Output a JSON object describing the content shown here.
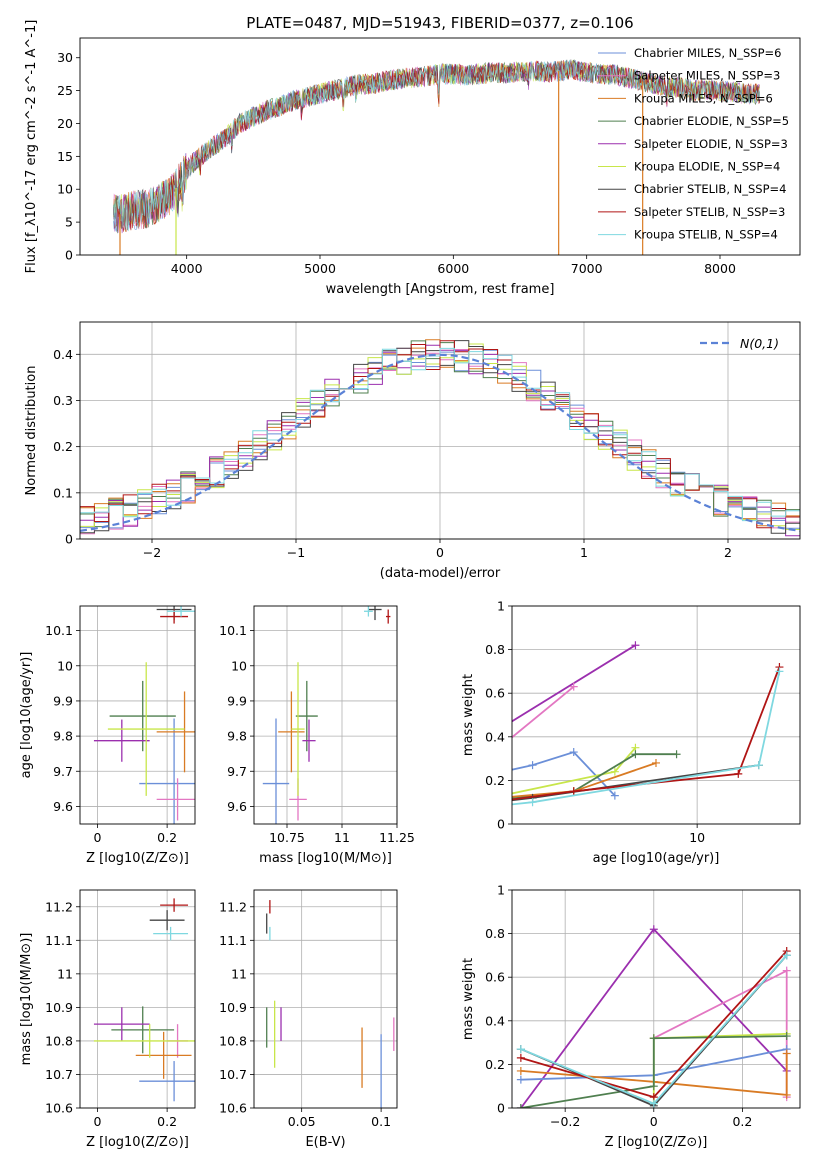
{
  "figure": {
    "title": "PLATE=0487, MJD=51943, FIBERID=0377, z=0.106"
  },
  "colors": {
    "Chabrier MILES": "#6b8fd8",
    "Salpeter MILES": "#e377c2",
    "Kroupa MILES": "#d97b24",
    "Chabrier ELODIE": "#4f7f4f",
    "Salpeter ELODIE": "#9b2fae",
    "Kroupa ELODIE": "#c8e64a",
    "Chabrier STELIB": "#454545",
    "Salpeter STELIB": "#b01515",
    "Kroupa STELIB": "#7fd8e0"
  },
  "chart_data": [
    {
      "id": "spectrum",
      "type": "line",
      "title": "PLATE=0487, MJD=51943, FIBERID=0377, z=0.106",
      "xlabel": "wavelength [Angstrom, rest frame]",
      "ylabel": "Flux [f_λ10^-17 erg cm^-2 s^-1 A^-1]",
      "xlim": [
        3200,
        8600
      ],
      "ylim": [
        0,
        33
      ],
      "xticks": [
        4000,
        5000,
        6000,
        7000,
        8000
      ],
      "yticks": [
        0,
        5,
        10,
        15,
        20,
        25,
        30
      ],
      "grid": false,
      "legend_position": "right",
      "legend": [
        "Chabrier MILES, N_SSP=6",
        "Salpeter MILES, N_SSP=3",
        "Kroupa MILES, N_SSP=6",
        "Chabrier ELODIE, N_SSP=5",
        "Salpeter ELODIE, N_SSP=3",
        "Kroupa ELODIE, N_SSP=4",
        "Chabrier STELIB, N_SSP=4",
        "Salpeter STELIB, N_SSP=3",
        "Kroupa STELIB, N_SSP=4"
      ],
      "continuum": {
        "x": [
          3450,
          3500,
          3600,
          3700,
          3800,
          3900,
          4000,
          4100,
          4200,
          4300,
          4400,
          4500,
          4600,
          4700,
          4800,
          4900,
          5000,
          5100,
          5200,
          5300,
          5400,
          5500,
          5600,
          5700,
          5800,
          5900,
          6000,
          6100,
          6200,
          6300,
          6400,
          6500,
          6600,
          6700,
          6800,
          6900,
          7000,
          7100,
          7200,
          7300,
          7400,
          7500,
          7600,
          7700,
          7800,
          7900,
          8000,
          8100,
          8200,
          8300
        ],
        "y": [
          6.5,
          6.2,
          6.8,
          7.0,
          8.0,
          9.5,
          13.0,
          15.0,
          16.5,
          18.0,
          20.0,
          21.0,
          22.0,
          22.5,
          23.5,
          24.0,
          24.5,
          25.0,
          25.5,
          26.0,
          26.0,
          26.5,
          26.8,
          27.0,
          27.2,
          27.5,
          27.5,
          27.3,
          27.5,
          27.8,
          27.6,
          27.9,
          28.0,
          27.8,
          28.0,
          28.2,
          27.8,
          27.5,
          27.5,
          27.0,
          26.5,
          26.0,
          25.5,
          25.5,
          25.0,
          25.2,
          25.0,
          24.8,
          24.5,
          24.5
        ]
      },
      "drop_lines": [
        {
          "x": 3500,
          "color": "Kroupa MILES"
        },
        {
          "x": 3920,
          "color": "Kroupa ELODIE"
        },
        {
          "x": 6790,
          "color": "Kroupa MILES"
        },
        {
          "x": 7420,
          "color": "Kroupa MILES"
        }
      ]
    },
    {
      "id": "residuals",
      "type": "step",
      "xlabel": "(data-model)/error",
      "ylabel": "Normed distribution",
      "xlim": [
        -2.5,
        2.5
      ],
      "ylim": [
        0,
        0.47
      ],
      "xticks": [
        -2,
        -1,
        0,
        1,
        2
      ],
      "yticks": [
        0.0,
        0.1,
        0.2,
        0.3,
        0.4
      ],
      "grid": true,
      "legend": [
        "N(0,1)"
      ],
      "legend_position": "top-right",
      "reference": "normal pdf, mean 0, sigma 1"
    },
    {
      "id": "age-vs-Z",
      "type": "errorbar",
      "xlabel": "Z [log10(Z/Z⊙)]",
      "ylabel": "age  [log10(age/yr)]",
      "xlim": [
        -0.05,
        0.28
      ],
      "ylim": [
        9.55,
        10.17
      ],
      "xticks": [
        0.0,
        0.2
      ],
      "yticks": [
        9.6,
        9.7,
        9.8,
        9.9,
        10.0,
        10.1
      ],
      "grid": true,
      "points": [
        {
          "model": "Chabrier MILES",
          "x": 0.22,
          "y": 9.665,
          "xerr": 0.1,
          "yerr": 0.185
        },
        {
          "model": "Salpeter MILES",
          "x": 0.23,
          "y": 9.62,
          "xerr": 0.06,
          "yerr": 0.06
        },
        {
          "model": "Kroupa MILES",
          "x": 0.25,
          "y": 9.812,
          "xerr": 0.08,
          "yerr": 0.115
        },
        {
          "model": "Chabrier ELODIE",
          "x": 0.13,
          "y": 9.857,
          "xerr": 0.095,
          "yerr": 0.1
        },
        {
          "model": "Salpeter ELODIE",
          "x": 0.07,
          "y": 9.787,
          "xerr": 0.08,
          "yerr": 0.06
        },
        {
          "model": "Kroupa ELODIE",
          "x": 0.14,
          "y": 9.82,
          "xerr": 0.11,
          "yerr": 0.19
        },
        {
          "model": "Chabrier STELIB",
          "x": 0.22,
          "y": 10.16,
          "xerr": 0.05,
          "yerr": 0.03
        },
        {
          "model": "Salpeter STELIB",
          "x": 0.22,
          "y": 10.14,
          "xerr": 0.04,
          "yerr": 0.02
        },
        {
          "model": "Kroupa STELIB",
          "x": 0.24,
          "y": 10.155,
          "xerr": 0.04,
          "yerr": 0.015
        }
      ]
    },
    {
      "id": "age-vs-mass",
      "type": "errorbar",
      "xlabel": "mass [log10(M/M⊙)]",
      "ylabel": "",
      "xlim": [
        10.6,
        11.25
      ],
      "ylim": [
        9.55,
        10.17
      ],
      "xticks": [
        10.75,
        11.0,
        11.25
      ],
      "yticks": [
        9.6,
        9.7,
        9.8,
        9.9,
        10.0,
        10.1
      ],
      "grid": true,
      "points": [
        {
          "model": "Chabrier MILES",
          "x": 10.7,
          "y": 9.665,
          "xerr": 0.06,
          "yerr": 0.185
        },
        {
          "model": "Salpeter MILES",
          "x": 10.8,
          "y": 9.62,
          "xerr": 0.04,
          "yerr": 0.06
        },
        {
          "model": "Kroupa MILES",
          "x": 10.77,
          "y": 9.812,
          "xerr": 0.06,
          "yerr": 0.115
        },
        {
          "model": "Chabrier ELODIE",
          "x": 10.84,
          "y": 9.857,
          "xerr": 0.05,
          "yerr": 0.1
        },
        {
          "model": "Salpeter ELODIE",
          "x": 10.85,
          "y": 9.787,
          "xerr": 0.03,
          "yerr": 0.06
        },
        {
          "model": "Kroupa ELODIE",
          "x": 10.8,
          "y": 9.82,
          "xerr": 0.03,
          "yerr": 0.19
        },
        {
          "model": "Chabrier STELIB",
          "x": 11.15,
          "y": 10.16,
          "xerr": 0.03,
          "yerr": 0.03
        },
        {
          "model": "Salpeter STELIB",
          "x": 11.21,
          "y": 10.14,
          "xerr": 0.01,
          "yerr": 0.02
        },
        {
          "model": "Kroupa STELIB",
          "x": 11.12,
          "y": 10.155,
          "xerr": 0.02,
          "yerr": 0.015
        }
      ]
    },
    {
      "id": "massweight-vs-age",
      "type": "line",
      "xlabel": "age  [log10(age/yr)]",
      "ylabel": "mass weight",
      "xlim": [
        9.55,
        10.25
      ],
      "ylim": [
        0.0,
        1.0
      ],
      "xticks": [
        9.0,
        9.5,
        10.0
      ],
      "yticks": [
        0.0,
        0.2,
        0.4,
        0.6,
        0.8,
        1.0
      ],
      "grid": true,
      "series": [
        {
          "model": "Salpeter ELODIE",
          "x": [
            9.0,
            9.3,
            9.85
          ],
          "y": [
            0.01,
            0.18,
            0.82
          ]
        },
        {
          "model": "Salpeter MILES",
          "x": [
            9.2,
            9.5,
            9.7
          ],
          "y": [
            0.05,
            0.32,
            0.63
          ]
        },
        {
          "model": "Chabrier MILES",
          "x": [
            9.0,
            9.6,
            9.7,
            9.8
          ],
          "y": [
            0.02,
            0.27,
            0.33,
            0.13
          ]
        },
        {
          "model": "Kroupa ELODIE",
          "x": [
            9.2,
            9.5,
            9.8,
            9.85
          ],
          "y": [
            0.05,
            0.12,
            0.24,
            0.35
          ]
        },
        {
          "model": "Chabrier ELODIE",
          "x": [
            9.2,
            9.7,
            9.85,
            9.95
          ],
          "y": [
            0.04,
            0.15,
            0.32,
            0.32
          ]
        },
        {
          "model": "Kroupa MILES",
          "x": [
            9.2,
            9.4,
            9.7,
            9.9
          ],
          "y": [
            0.06,
            0.1,
            0.15,
            0.28
          ]
        },
        {
          "model": "Chabrier STELIB",
          "x": [
            9.2,
            9.6,
            10.15
          ],
          "y": [
            0.03,
            0.12,
            0.27
          ]
        },
        {
          "model": "Salpeter STELIB",
          "x": [
            9.3,
            9.7,
            10.1,
            10.2
          ],
          "y": [
            0.05,
            0.15,
            0.23,
            0.72
          ]
        },
        {
          "model": "Kroupa STELIB",
          "x": [
            9.2,
            9.6,
            10.15,
            10.2
          ],
          "y": [
            0.02,
            0.1,
            0.27,
            0.7
          ]
        }
      ]
    },
    {
      "id": "mass-vs-Z",
      "type": "errorbar",
      "xlabel": "Z [log10(Z/Z⊙)]",
      "ylabel": "mass [log10(M/M⊙)]",
      "xlim": [
        -0.05,
        0.28
      ],
      "ylim": [
        10.6,
        11.25
      ],
      "xticks": [
        0.0,
        0.2
      ],
      "yticks": [
        10.6,
        10.7,
        10.8,
        10.9,
        11.0,
        11.1,
        11.2
      ],
      "grid": true,
      "points": [
        {
          "model": "Chabrier MILES",
          "x": 0.22,
          "y": 10.68,
          "xerr": 0.1,
          "yerr": 0.06
        },
        {
          "model": "Salpeter MILES",
          "x": 0.23,
          "y": 10.8,
          "xerr": 0.03,
          "yerr": 0.05
        },
        {
          "model": "Kroupa MILES",
          "x": 0.19,
          "y": 10.757,
          "xerr": 0.08,
          "yerr": 0.07
        },
        {
          "model": "Chabrier ELODIE",
          "x": 0.13,
          "y": 10.833,
          "xerr": 0.09,
          "yerr": 0.07
        },
        {
          "model": "Salpeter ELODIE",
          "x": 0.07,
          "y": 10.85,
          "xerr": 0.08,
          "yerr": 0.05
        },
        {
          "model": "Kroupa ELODIE",
          "x": 0.15,
          "y": 10.8,
          "xerr": 0.16,
          "yerr": 0.05
        },
        {
          "model": "Chabrier STELIB",
          "x": 0.2,
          "y": 11.16,
          "xerr": 0.05,
          "yerr": 0.03
        },
        {
          "model": "Salpeter STELIB",
          "x": 0.22,
          "y": 11.205,
          "xerr": 0.04,
          "yerr": 0.02
        },
        {
          "model": "Kroupa STELIB",
          "x": 0.21,
          "y": 11.12,
          "xerr": 0.05,
          "yerr": 0.02
        }
      ]
    },
    {
      "id": "mass-vs-EBV",
      "type": "errorbar",
      "xlabel": "E(B-V)",
      "ylabel": "",
      "xlim": [
        0.02,
        0.11
      ],
      "ylim": [
        10.6,
        11.25
      ],
      "xticks": [
        0.05,
        0.1
      ],
      "yticks": [
        10.6,
        10.7,
        10.8,
        10.9,
        11.0,
        11.1,
        11.2
      ],
      "grid": true,
      "points": [
        {
          "model": "Chabrier MILES",
          "x": 0.1,
          "y": 10.7,
          "xerr": 0,
          "yerr": 0.12
        },
        {
          "model": "Salpeter MILES",
          "x": 0.108,
          "y": 10.82,
          "xerr": 0,
          "yerr": 0.05
        },
        {
          "model": "Kroupa MILES",
          "x": 0.088,
          "y": 10.75,
          "xerr": 0,
          "yerr": 0.09
        },
        {
          "model": "Chabrier ELODIE",
          "x": 0.028,
          "y": 10.84,
          "xerr": 0,
          "yerr": 0.06
        },
        {
          "model": "Salpeter ELODIE",
          "x": 0.037,
          "y": 10.85,
          "xerr": 0,
          "yerr": 0.05
        },
        {
          "model": "Kroupa ELODIE",
          "x": 0.033,
          "y": 10.82,
          "xerr": 0,
          "yerr": 0.1
        },
        {
          "model": "Chabrier STELIB",
          "x": 0.028,
          "y": 11.15,
          "xerr": 0,
          "yerr": 0.03
        },
        {
          "model": "Salpeter STELIB",
          "x": 0.03,
          "y": 11.2,
          "xerr": 0,
          "yerr": 0.02
        },
        {
          "model": "Kroupa STELIB",
          "x": 0.03,
          "y": 11.12,
          "xerr": 0,
          "yerr": 0.02
        }
      ]
    },
    {
      "id": "massweight-vs-Z",
      "type": "line",
      "xlabel": "Z [log10(Z/Z⊙)]",
      "ylabel": "mass weight",
      "xlim": [
        -0.32,
        0.33
      ],
      "ylim": [
        0.0,
        1.0
      ],
      "xticks": [
        -0.2,
        0.0,
        0.2
      ],
      "yticks": [
        0.0,
        0.2,
        0.4,
        0.6,
        0.8,
        1.0
      ],
      "grid": true,
      "series": [
        {
          "model": "Salpeter ELODIE",
          "x": [
            -0.3,
            0.0,
            0.3
          ],
          "y": [
            0.0,
            0.82,
            0.17
          ]
        },
        {
          "model": "Salpeter MILES",
          "x": [
            0.0,
            0.3,
            0.3
          ],
          "y": [
            0.32,
            0.63,
            0.05
          ]
        },
        {
          "model": "Chabrier MILES",
          "x": [
            -0.3,
            0.0,
            0.3
          ],
          "y": [
            0.13,
            0.15,
            0.27
          ]
        },
        {
          "model": "Kroupa MILES",
          "x": [
            -0.3,
            0.0,
            0.3,
            0.3
          ],
          "y": [
            0.17,
            0.12,
            0.06,
            0.25
          ]
        },
        {
          "model": "Kroupa ELODIE",
          "x": [
            0.0,
            0.0,
            0.3
          ],
          "y": [
            0.02,
            0.32,
            0.34
          ]
        },
        {
          "model": "Chabrier ELODIE",
          "x": [
            -0.3,
            0.0,
            0.0,
            0.3
          ],
          "y": [
            0.0,
            0.1,
            0.32,
            0.33
          ]
        },
        {
          "model": "Chabrier STELIB",
          "x": [
            -0.3,
            0.0,
            0.3
          ],
          "y": [
            0.27,
            0.01,
            0.7
          ]
        },
        {
          "model": "Salpeter STELIB",
          "x": [
            -0.3,
            0.0,
            0.3
          ],
          "y": [
            0.23,
            0.05,
            0.72
          ]
        },
        {
          "model": "Kroupa STELIB",
          "x": [
            -0.3,
            0.0,
            0.3
          ],
          "y": [
            0.27,
            0.02,
            0.7
          ]
        }
      ]
    }
  ]
}
